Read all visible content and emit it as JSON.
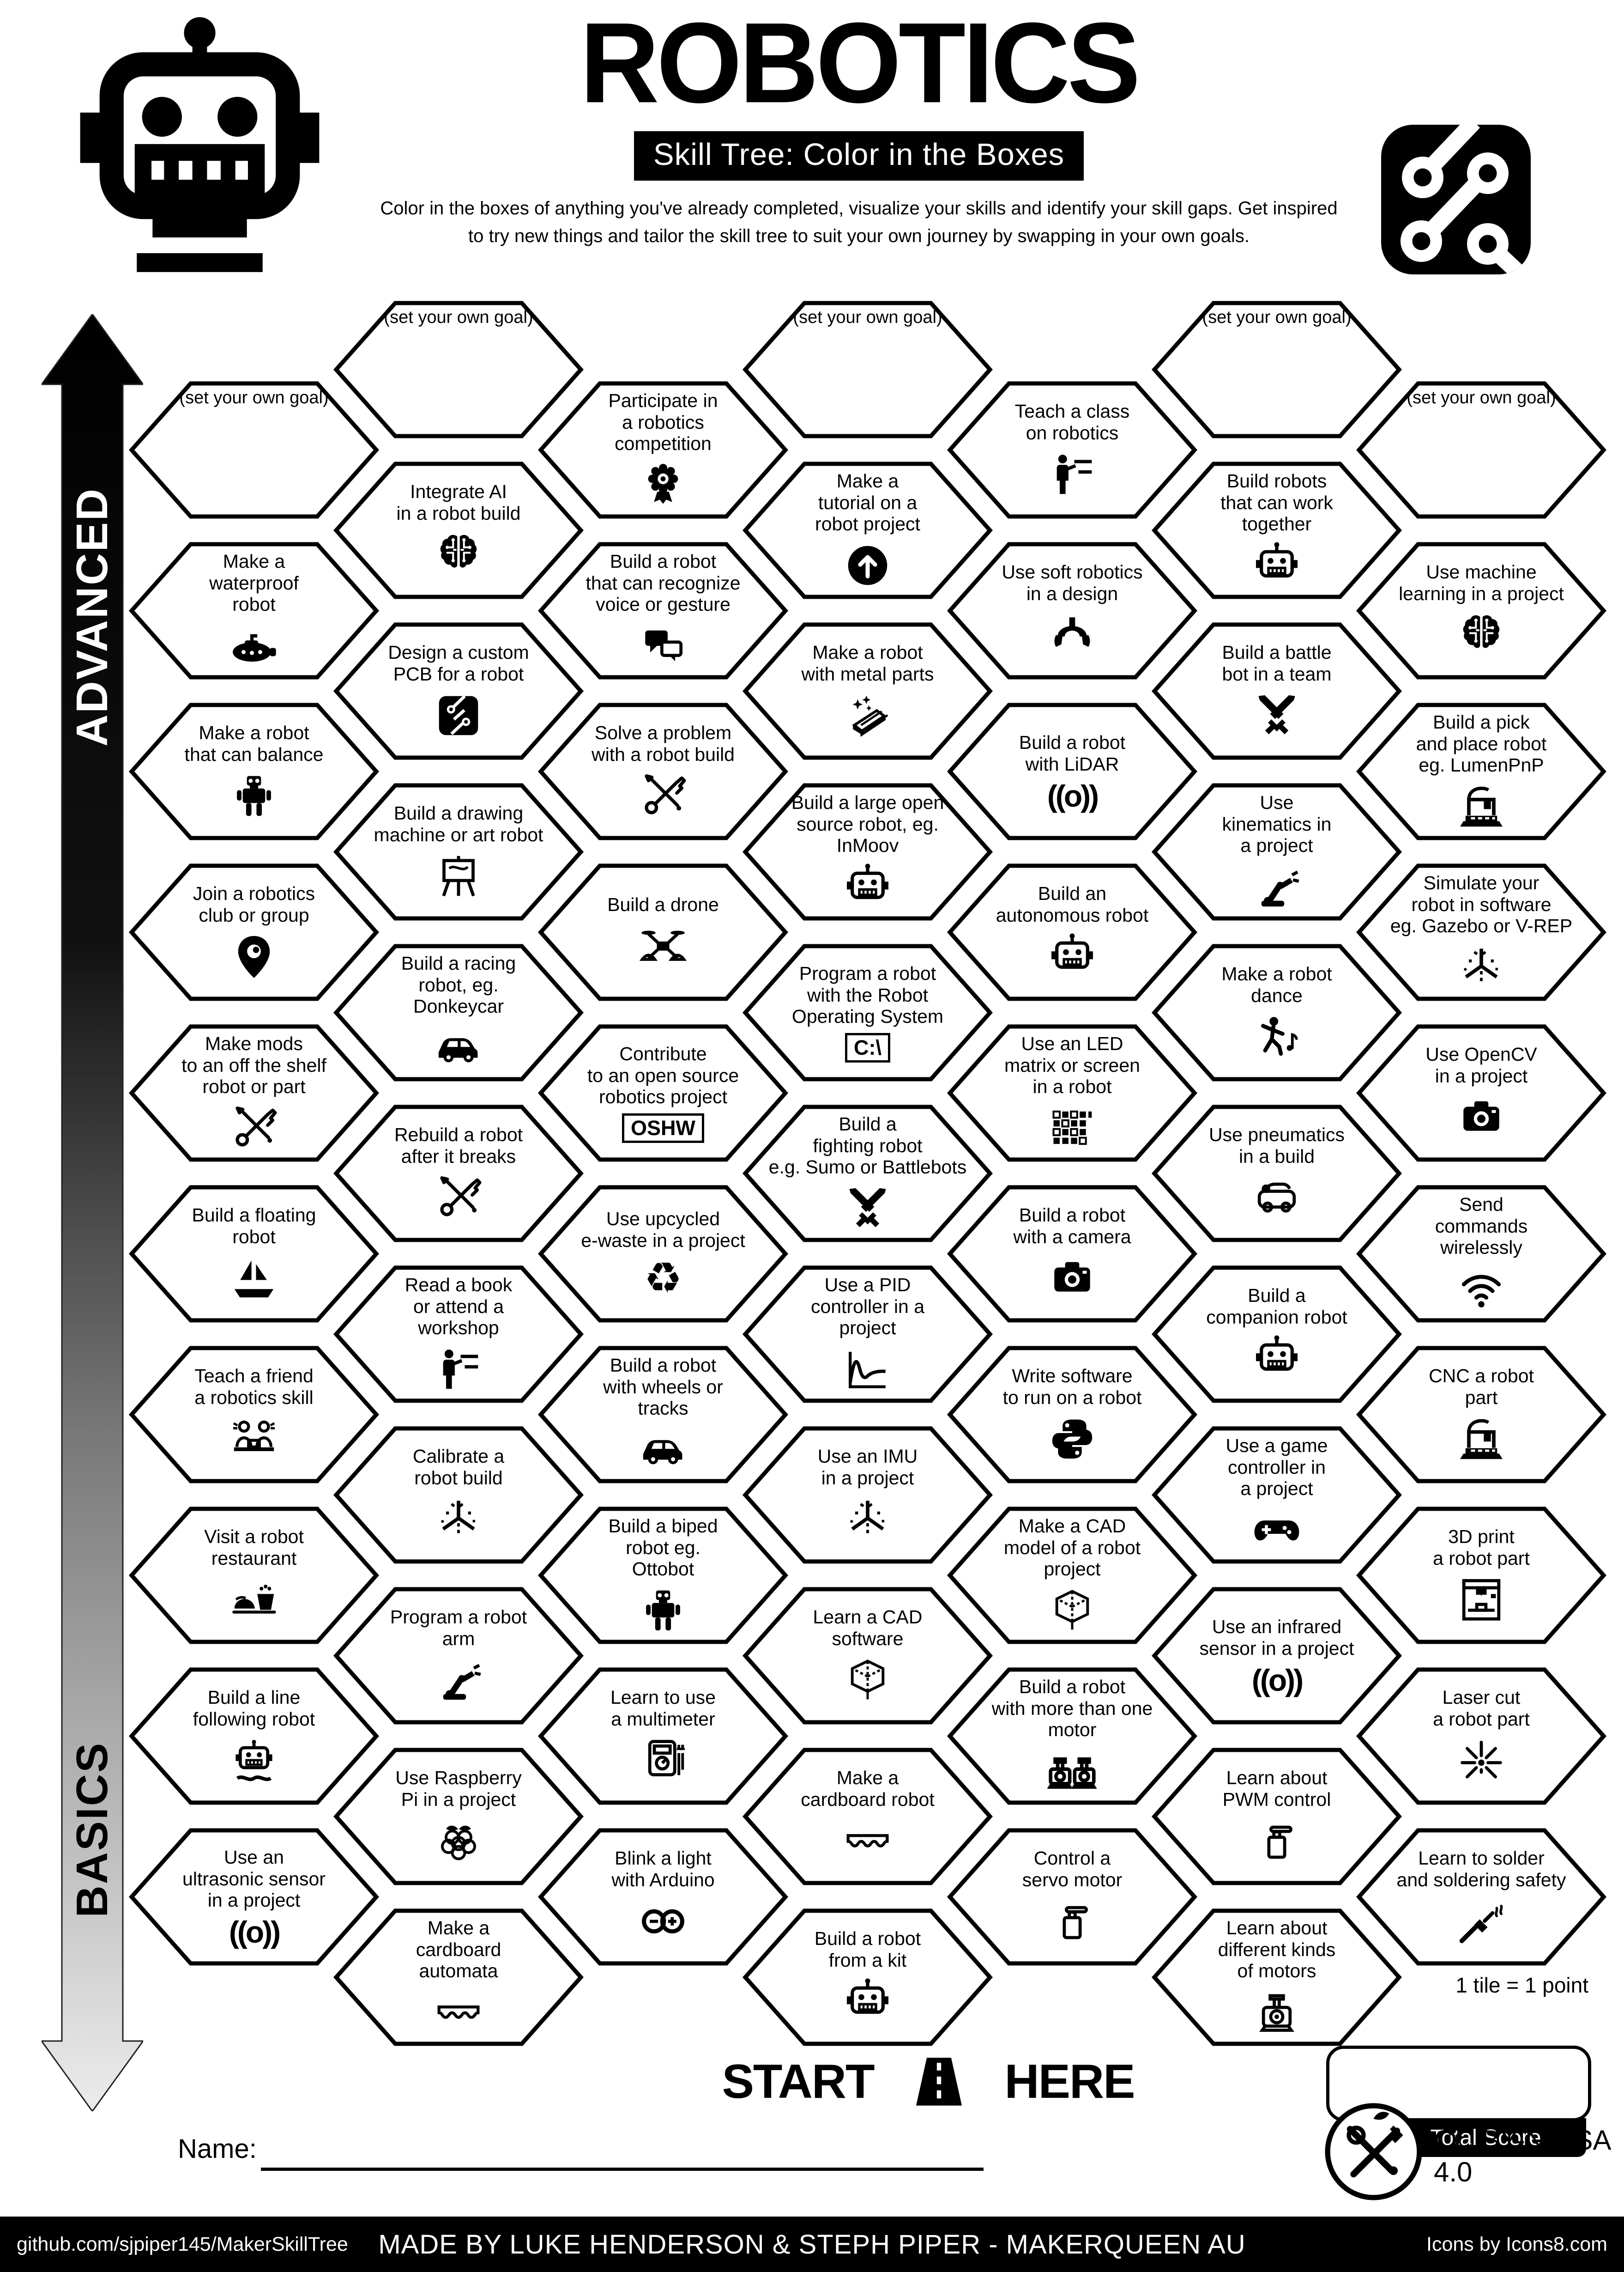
{
  "header": {
    "title": "ROBOTICS",
    "subtitle": "Skill Tree: Color in the Boxes",
    "description_line1": "Color in the boxes of anything you've already completed, visualize your skills and identify your skill gaps.  Get inspired",
    "description_line2": "to try new things and tailor the skill tree to suit your own journey by swapping in your own goals."
  },
  "axis": {
    "top_label": "ADVANCED",
    "bottom_label": "BASICS"
  },
  "goal_label": "(set your own goal)",
  "start_here": {
    "start": "START",
    "here": "HERE"
  },
  "name_field": {
    "label": "Name:"
  },
  "scoring": {
    "tile_note": "1 tile = 1 point",
    "total_label": "Total Score"
  },
  "license": "CC BY-NC-SA 4.0",
  "footer": {
    "left": "github.com/sjpiper145/MakerSkillTree",
    "center": "MADE BY LUKE HENDERSON & STEPH PIPER  -  MAKERQUEEN AU",
    "right": "Icons by Icons8.com"
  },
  "colors": {
    "ink": "#000000",
    "paper": "#ffffff"
  },
  "columns": [
    {
      "tiles": [
        {
          "goal": true
        },
        {
          "label": "Make a\nwaterproof\nrobot",
          "icon": "sub",
          "icon_name": "submarine-icon"
        },
        {
          "label": "Make a robot\nthat can balance",
          "icon": "biped",
          "icon_name": "balancing-robot-icon"
        },
        {
          "label": "Join a robotics\nclub or group",
          "icon": "pin",
          "icon_name": "location-pin-icon"
        },
        {
          "label": "Make mods\nto an off the shelf\nrobot or part",
          "icon": "tools",
          "icon_name": "crossed-tools-icon"
        },
        {
          "label": "Build a floating\nrobot",
          "icon": "boat",
          "icon_name": "sailboat-icon"
        },
        {
          "label": "Teach a friend\na robotics skill",
          "icon": "people2",
          "icon_name": "two-people-laptop-icon"
        },
        {
          "label": "Visit a robot\nrestaurant",
          "icon": "food",
          "icon_name": "robot-restaurant-icon"
        },
        {
          "label": "Build a line\nfollowing robot",
          "icon": "robotline",
          "icon_name": "line-following-robot-icon"
        },
        {
          "label": "Use an\nultrasonic sensor\nin a project",
          "txt": "((o))",
          "icon_name": "ultrasonic-wave-icon"
        }
      ]
    },
    {
      "tiles": [
        {
          "goal": true
        },
        {
          "label": "Integrate AI\nin a robot build",
          "icon": "brain",
          "icon_name": "ai-brain-icon"
        },
        {
          "label": "Design a custom\nPCB for a robot",
          "icon": "pcb",
          "icon_name": "pcb-icon"
        },
        {
          "label": "Build a drawing\nmachine or art robot",
          "icon": "easel",
          "icon_name": "easel-icon"
        },
        {
          "label": "Build a racing\nrobot, eg.\nDonkeycar",
          "icon": "car",
          "icon_name": "race-car-icon"
        },
        {
          "label": "Rebuild a robot\nafter it breaks",
          "icon": "tools",
          "icon_name": "crossed-tools-icon"
        },
        {
          "label": "Read a book\nor attend a\nworkshop",
          "icon": "teacher",
          "icon_name": "workshop-icon"
        },
        {
          "label": "Calibrate a\nrobot build",
          "icon": "axes",
          "icon_name": "calibration-axes-icon"
        },
        {
          "label": "Program a robot\narm",
          "icon": "arm",
          "icon_name": "robot-arm-icon"
        },
        {
          "label": "Use Raspberry\nPi in a project",
          "icon": "raspberry",
          "icon_name": "raspberry-pi-icon"
        },
        {
          "label": "Make a\ncardboard\nautomata",
          "icon": "corrugate",
          "icon_name": "cardboard-icon"
        }
      ]
    },
    {
      "tiles": [
        {
          "label": "Participate in\na robotics\ncompetition",
          "icon": "medal",
          "icon_name": "medal-icon"
        },
        {
          "label": "Build a robot\nthat can recognize\nvoice or gesture",
          "icon": "chat",
          "icon_name": "speech-bubbles-icon"
        },
        {
          "label": "Solve a problem\nwith a robot build",
          "icon": "tools",
          "icon_name": "crossed-tools-icon"
        },
        {
          "label": "Build a drone",
          "icon": "drone",
          "icon_name": "drone-icon"
        },
        {
          "label": "Contribute\nto an open source\nrobotics project",
          "box": "OSHW",
          "icon_name": "oshw-icon"
        },
        {
          "label": "Use upcycled\ne-waste in a project",
          "glyph": "♻",
          "icon_name": "recycle-icon"
        },
        {
          "label": "Build a robot\nwith wheels or\ntracks",
          "icon": "car",
          "icon_name": "wheeled-car-icon"
        },
        {
          "label": "Build a biped\nrobot eg.\nOttobot",
          "icon": "biped",
          "icon_name": "biped-robot-icon"
        },
        {
          "label": "Learn to use\na multimeter",
          "icon": "multimeter",
          "icon_name": "multimeter-icon"
        },
        {
          "label": "Blink a light\nwith Arduino",
          "icon": "arduino",
          "icon_name": "arduino-icon"
        }
      ]
    },
    {
      "tiles": [
        {
          "goal": true
        },
        {
          "label": "Make a\ntutorial on a\nrobot project",
          "icon": "arrowcircle",
          "icon_name": "upload-arrow-icon"
        },
        {
          "label": "Make a robot\nwith metal parts",
          "icon": "metal",
          "icon_name": "metal-parts-icon"
        },
        {
          "label": "Build a large open\nsource robot, eg.\nInMoov",
          "icon": "robothead",
          "icon_name": "robot-head-icon"
        },
        {
          "label": "Program a robot\nwith the Robot\nOperating System",
          "box": "C:\\",
          "icon_name": "ros-terminal-icon"
        },
        {
          "label": "Build a\nfighting robot\ne.g. Sumo or Battlebots",
          "icon": "swords",
          "icon_name": "crossed-swords-icon"
        },
        {
          "label": "Use a PID\ncontroller in a\nproject",
          "icon": "pid",
          "icon_name": "pid-curve-icon"
        },
        {
          "label": "Use an IMU\nin a project",
          "icon": "axes",
          "icon_name": "imu-axes-icon"
        },
        {
          "label": "Learn a CAD\nsoftware",
          "icon": "cube",
          "icon_name": "cad-cube-icon"
        },
        {
          "label": "Make a\ncardboard robot",
          "icon": "corrugate",
          "icon_name": "cardboard-icon"
        },
        {
          "label": "Build a robot\nfrom a kit",
          "icon": "robothead",
          "icon_name": "robot-head-icon"
        }
      ]
    },
    {
      "tiles": [
        {
          "label": "Teach a class\non robotics",
          "icon": "teacher",
          "icon_name": "teacher-icon"
        },
        {
          "label": "Use soft robotics\nin a design",
          "icon": "gripper",
          "icon_name": "soft-gripper-icon"
        },
        {
          "label": "Build a robot\nwith LiDAR",
          "txt": "((o))",
          "icon_name": "lidar-wave-icon"
        },
        {
          "label": "Build an\nautonomous robot",
          "icon": "robothead",
          "icon_name": "robot-head-icon"
        },
        {
          "label": "Use an LED\nmatrix or screen\nin a robot",
          "icon": "ledgrid",
          "icon_name": "led-matrix-icon"
        },
        {
          "label": "Build a robot\nwith a camera",
          "icon": "camera",
          "icon_name": "camera-icon"
        },
        {
          "label": "Write software\nto run on a robot",
          "icon": "python",
          "icon_name": "python-icon"
        },
        {
          "label": "Make a CAD\nmodel of a robot\nproject",
          "icon": "cube",
          "icon_name": "cad-cube-icon"
        },
        {
          "label": "Build a robot\nwith more than one\nmotor",
          "icon": "motor2",
          "icon_name": "dual-motor-icon"
        },
        {
          "label": "Control a\nservo motor",
          "icon": "servo",
          "icon_name": "servo-icon"
        }
      ]
    },
    {
      "tiles": [
        {
          "goal": true
        },
        {
          "label": "Build robots\nthat can work\ntogether",
          "icon": "robothead",
          "icon_name": "robot-head-icon"
        },
        {
          "label": "Build a battle\nbot in a team",
          "icon": "swords",
          "icon_name": "crossed-swords-icon"
        },
        {
          "label": "Use\nkinematics in\na project",
          "icon": "arm",
          "icon_name": "robot-arm-icon"
        },
        {
          "label": "Make a robot\ndance",
          "icon": "dancer",
          "icon_name": "dancing-person-icon"
        },
        {
          "label": "Use pneumatics\nin a build",
          "icon": "pneumo",
          "icon_name": "pneumatic-vehicle-icon"
        },
        {
          "label": "Build a\ncompanion robot",
          "icon": "robothead",
          "icon_name": "robot-head-icon"
        },
        {
          "label": "Use a game\ncontroller in\na project",
          "icon": "gamepad",
          "icon_name": "gamepad-icon"
        },
        {
          "label": "Use an infrared\nsensor in a project",
          "txt": "((o))",
          "icon_name": "infrared-wave-icon"
        },
        {
          "label": "Learn about\nPWM control",
          "icon": "servo",
          "icon_name": "servo-icon"
        },
        {
          "label": "Learn about\ndifferent kinds\nof motors",
          "icon": "motor",
          "icon_name": "motor-icon"
        }
      ]
    },
    {
      "tiles": [
        {
          "goal": true
        },
        {
          "label": "Use machine\nlearning in a project",
          "icon": "brain",
          "icon_name": "ml-brain-icon"
        },
        {
          "label": "Build a pick\nand place robot\neg. LumenPnP",
          "icon": "cnc",
          "icon_name": "pick-and-place-icon"
        },
        {
          "label": "Simulate your\nrobot in software\neg. Gazebo or V-REP",
          "icon": "axes",
          "icon_name": "simulation-axes-icon"
        },
        {
          "label": "Use OpenCV\nin a project",
          "icon": "camera",
          "icon_name": "opencv-camera-icon"
        },
        {
          "label": "Send\ncommands\nwirelessly",
          "icon": "wifi",
          "icon_name": "wifi-icon"
        },
        {
          "label": "CNC a robot\npart",
          "icon": "cnc",
          "icon_name": "cnc-machine-icon"
        },
        {
          "label": "3D print\na robot part",
          "icon": "printer3d",
          "icon_name": "printer-3d-icon"
        },
        {
          "label": "Laser cut\na robot part",
          "icon": "laser",
          "icon_name": "laser-icon"
        },
        {
          "label": "Learn to solder\nand soldering safety",
          "icon": "solder",
          "icon_name": "soldering-iron-icon"
        }
      ]
    }
  ]
}
